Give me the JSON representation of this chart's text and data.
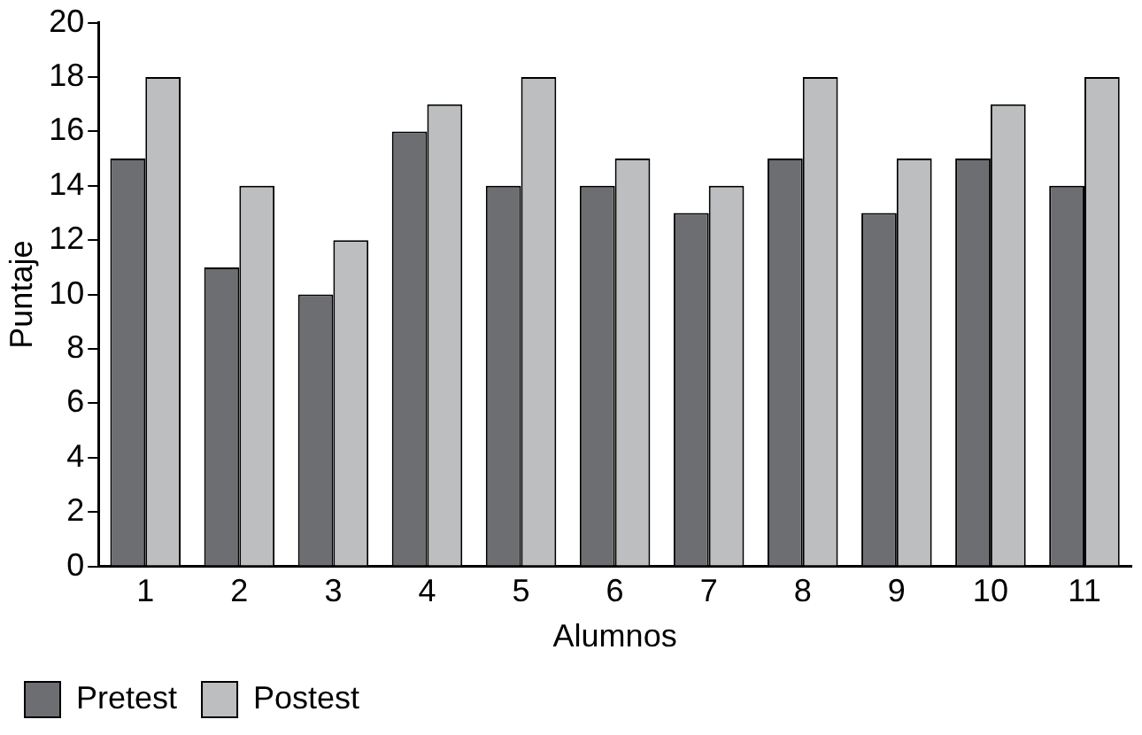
{
  "chart_data": {
    "type": "bar",
    "xlabel": "Alumnos",
    "ylabel": "Puntaje",
    "categories": [
      "1",
      "2",
      "3",
      "4",
      "5",
      "6",
      "7",
      "8",
      "9",
      "10",
      "11"
    ],
    "series": [
      {
        "name": "Pretest",
        "color": "#6d6e71",
        "values": [
          15,
          11,
          10,
          16,
          14,
          14,
          13,
          15,
          13,
          15,
          14
        ]
      },
      {
        "name": "Postest",
        "color": "#bcbec0",
        "values": [
          18,
          14,
          12,
          17,
          18,
          15,
          14,
          18,
          15,
          17,
          18
        ]
      }
    ],
    "ylim": [
      0,
      20
    ],
    "yticks": [
      0,
      2,
      4,
      6,
      8,
      10,
      12,
      14,
      16,
      18,
      20
    ],
    "grid": false,
    "legend": "bottom left"
  }
}
